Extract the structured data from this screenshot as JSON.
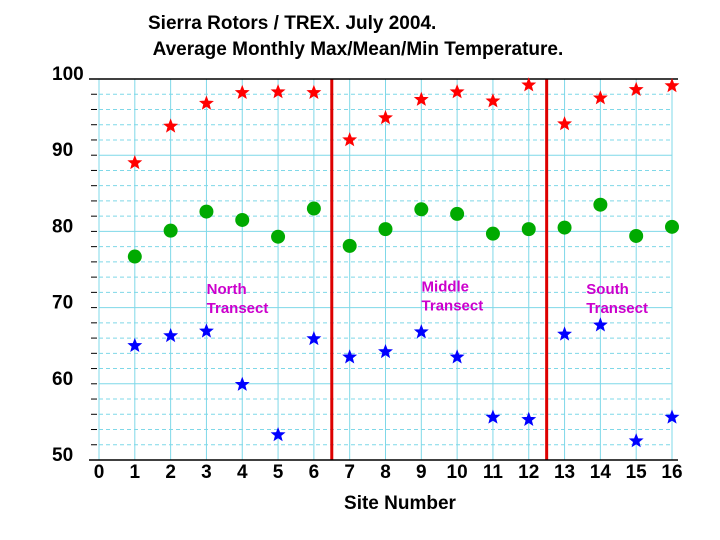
{
  "chart_data": {
    "type": "scatter",
    "title_lines": [
      "Sierra Rotors / TREX.  July 2004.",
      " Average Monthly Max/Mean/Min Temperature."
    ],
    "xlabel": "Site Number",
    "ylabel": "",
    "xlim": [
      0,
      16
    ],
    "ylim": [
      50,
      100
    ],
    "x_ticks": [
      "0",
      "1",
      "2",
      "3",
      "4",
      "5",
      "6",
      "7",
      "8",
      "9",
      "10",
      "11",
      "12",
      "13",
      "14",
      "15",
      "16"
    ],
    "y_ticks": [
      "50",
      "60",
      "70",
      "80",
      "90",
      "100"
    ],
    "grid": true,
    "colors": {
      "max": "#ff0000",
      "mean": "#00aa00",
      "min": "#0000ff",
      "divider": "#dd0000",
      "annotation": "#cc00cc",
      "grid": "#7fd8e8"
    },
    "series": [
      {
        "name": "Max",
        "marker": "star",
        "color": "#ff0000",
        "x": [
          1,
          2,
          3,
          4,
          5,
          6,
          7,
          8,
          9,
          10,
          11,
          12,
          13,
          14,
          15,
          16
        ],
        "y": [
          89,
          93.8,
          96.8,
          98.2,
          98.3,
          98.2,
          92,
          94.9,
          97.3,
          98.3,
          97.1,
          99.2,
          94.1,
          97.5,
          98.6,
          99.1
        ]
      },
      {
        "name": "Mean",
        "marker": "circle",
        "color": "#00aa00",
        "x": [
          1,
          2,
          3,
          4,
          5,
          6,
          7,
          8,
          9,
          10,
          11,
          12,
          13,
          14,
          15,
          16
        ],
        "y": [
          76.7,
          80.1,
          82.6,
          81.5,
          79.3,
          83.0,
          78.1,
          80.3,
          82.9,
          82.3,
          79.7,
          80.3,
          80.5,
          83.5,
          79.4,
          80.6
        ]
      },
      {
        "name": "Min",
        "marker": "star",
        "color": "#0000ff",
        "x": [
          1,
          2,
          3,
          4,
          5,
          6,
          7,
          8,
          9,
          10,
          11,
          12,
          13,
          14,
          15,
          16
        ],
        "y": [
          65.0,
          66.3,
          66.9,
          59.9,
          53.3,
          65.9,
          63.5,
          64.2,
          66.8,
          63.5,
          55.6,
          55.3,
          66.5,
          67.7,
          52.5,
          55.6
        ]
      }
    ],
    "dividers_x": [
      6.5,
      12.5
    ],
    "annotations": [
      {
        "lines": [
          "North",
          "Transect"
        ],
        "x": 3.9,
        "y": 71.8
      },
      {
        "lines": [
          "Middle",
          "Transect"
        ],
        "x": 9.9,
        "y": 72.1
      },
      {
        "lines": [
          "South",
          "Transect"
        ],
        "x": 14.5,
        "y": 71.8
      }
    ]
  }
}
